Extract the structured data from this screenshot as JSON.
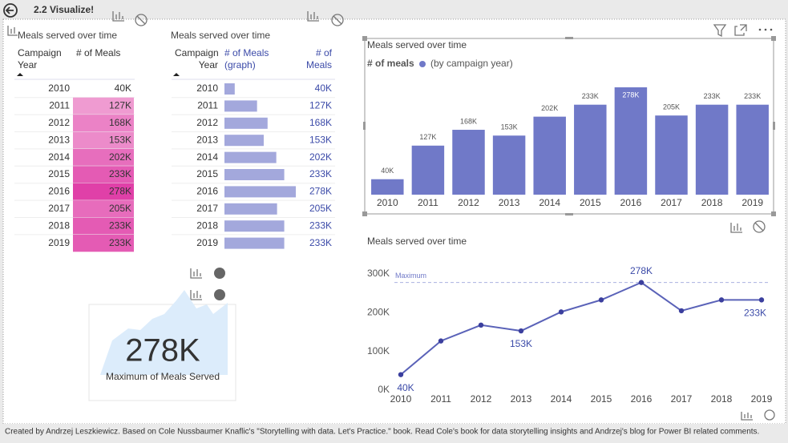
{
  "header": {
    "title": "2.2 Visualize!"
  },
  "table1": {
    "title": "Meals served over time",
    "columns": [
      [
        "Campaign",
        "Year"
      ],
      [
        "# of Meals"
      ]
    ],
    "years": [
      "2010",
      "2011",
      "2012",
      "2013",
      "2014",
      "2015",
      "2016",
      "2017",
      "2018",
      "2019"
    ],
    "values": [
      40,
      127,
      168,
      153,
      202,
      233,
      278,
      205,
      233,
      233
    ],
    "value_labels": [
      "40K",
      "127K",
      "168K",
      "153K",
      "202K",
      "233K",
      "278K",
      "205K",
      "233K",
      "233K"
    ],
    "color": "#e040a8"
  },
  "table2": {
    "title": "Meals served over time",
    "columns": [
      [
        "Campaign",
        "Year"
      ],
      [
        "# of Meals",
        "(graph)"
      ],
      [
        "# of",
        "Meals"
      ]
    ],
    "years": [
      "2010",
      "2011",
      "2012",
      "2013",
      "2014",
      "2015",
      "2016",
      "2017",
      "2018",
      "2019"
    ],
    "values": [
      40,
      127,
      168,
      153,
      202,
      233,
      278,
      205,
      233,
      233
    ],
    "value_labels": [
      "40K",
      "127K",
      "168K",
      "153K",
      "202K",
      "233K",
      "278K",
      "205K",
      "233K",
      "233K"
    ],
    "color": "#a3a8dc"
  },
  "card": {
    "value": "278K",
    "label": "Maximum of Meals Served"
  },
  "chart_data": [
    {
      "type": "bar",
      "title": "Meals served over time",
      "legend_title": "# of meals",
      "legend_label": "(by campaign year)",
      "categories": [
        "2010",
        "2011",
        "2012",
        "2013",
        "2014",
        "2015",
        "2016",
        "2017",
        "2018",
        "2019"
      ],
      "values": [
        40,
        127,
        168,
        153,
        202,
        233,
        278,
        205,
        233,
        233
      ],
      "value_labels": [
        "40K",
        "127K",
        "168K",
        "153K",
        "202K",
        "233K",
        "278K",
        "205K",
        "233K",
        "233K"
      ],
      "color": "#7079c8"
    },
    {
      "type": "line",
      "title": "Meals served over time",
      "categories": [
        "2010",
        "2011",
        "2012",
        "2013",
        "2014",
        "2015",
        "2016",
        "2017",
        "2018",
        "2019"
      ],
      "values": [
        40,
        127,
        168,
        153,
        202,
        233,
        278,
        205,
        233,
        233
      ],
      "value_labels": [
        "40K",
        null,
        null,
        "153K",
        null,
        null,
        "278K",
        null,
        null,
        "233K"
      ],
      "color": "#5a62b8",
      "ylim": [
        0,
        300
      ],
      "yticks": [
        {
          "value": 0,
          "label": "0K"
        },
        {
          "value": 100,
          "label": "100K"
        },
        {
          "value": 200,
          "label": "200K"
        },
        {
          "value": 300,
          "label": "300K"
        }
      ],
      "reference_line": {
        "label": "Maximum",
        "value": 278
      }
    }
  ],
  "footer": {
    "text": "Created by Andrzej Leszkiewicz. Based on Cole Nussbaumer Knaflic's \"Storytelling with data. Let's Practice.\" book. Read Cole's book for data storytelling insights and Andrzej's blog for Power BI related comments."
  }
}
